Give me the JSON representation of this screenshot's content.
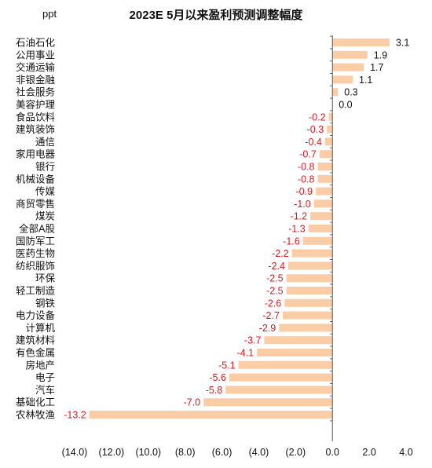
{
  "chart_data": {
    "type": "bar",
    "orientation": "horizontal",
    "title": "2023E 5月以来盈利预测调整幅度",
    "unit_label": "ppt",
    "categories": [
      "石油石化",
      "公用事业",
      "交通运输",
      "非银金融",
      "社会服务",
      "美容护理",
      "食品饮料",
      "建筑装饰",
      "通信",
      "家用电器",
      "银行",
      "机械设备",
      "传媒",
      "商贸零售",
      "煤炭",
      "全部A股",
      "国防军工",
      "医药生物",
      "纺织服饰",
      "环保",
      "轻工制造",
      "钢铁",
      "电力设备",
      "计算机",
      "建筑材料",
      "有色金属",
      "房地产",
      "电子",
      "汽车",
      "基础化工",
      "农林牧渔"
    ],
    "values": [
      3.1,
      1.9,
      1.7,
      1.1,
      0.3,
      0.0,
      -0.2,
      -0.3,
      -0.4,
      -0.7,
      -0.8,
      -0.8,
      -0.9,
      -1.0,
      -1.2,
      -1.3,
      -1.6,
      -2.2,
      -2.4,
      -2.5,
      -2.5,
      -2.6,
      -2.7,
      -2.9,
      -3.7,
      -4.1,
      -5.1,
      -5.6,
      -5.8,
      -7.0,
      -13.2
    ],
    "value_labels": [
      "3.1",
      "1.9",
      "1.7",
      "1.1",
      "0.3",
      "0.0",
      "-0.2",
      "-0.3",
      "-0.4",
      "-0.7",
      "-0.8",
      "-0.8",
      "-0.9",
      "-1.0",
      "-1.2",
      "-1.3",
      "-1.6",
      "-2.2",
      "-2.4",
      "-2.5",
      "-2.5",
      "-2.6",
      "-2.7",
      "-2.9",
      "-3.7",
      "-4.1",
      "-5.1",
      "-5.6",
      "-5.8",
      "-7.0",
      "-13.2"
    ],
    "xlim": [
      -14,
      4
    ],
    "xticks": [
      -14,
      -12,
      -10,
      -8,
      -6,
      -4,
      -2,
      0,
      2,
      4
    ],
    "xtick_labels": [
      "(14.0)",
      "(12.0)",
      "(10.0)",
      "(8.0)",
      "(6.0)",
      "(4.0)",
      "(2.0)",
      "0.0",
      "2.0",
      "4.0"
    ],
    "grid": false,
    "colors": {
      "bar": "#fbcda7",
      "negative_label": "#e0181e",
      "positive_label": "#111111",
      "axis": "#555555",
      "text": "#111111"
    }
  }
}
